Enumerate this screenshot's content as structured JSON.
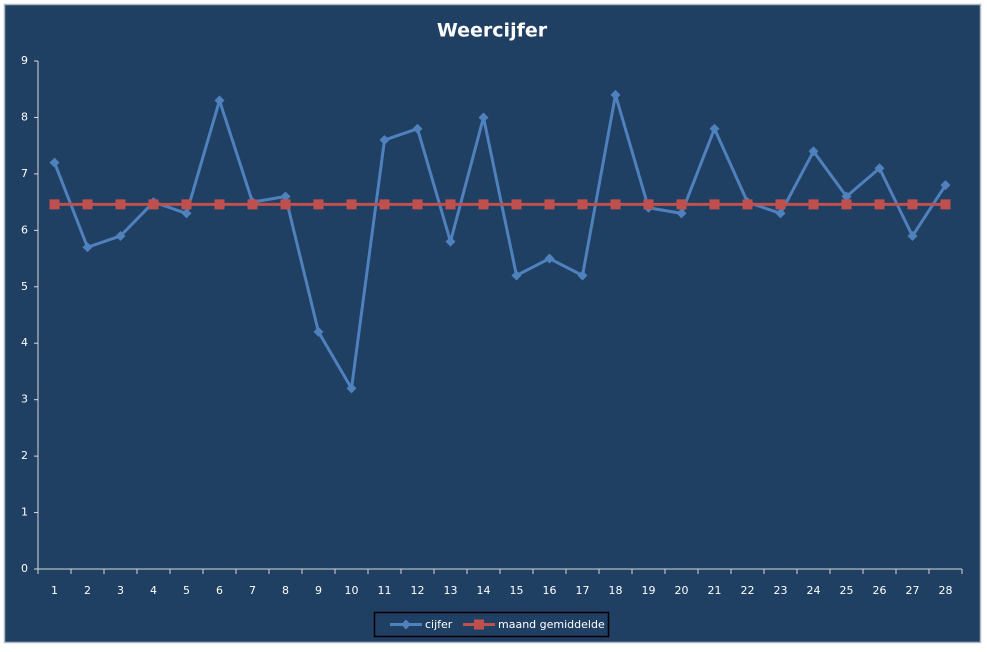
{
  "chart_data": {
    "type": "line",
    "title": "Weercijfer",
    "categories": [
      "1",
      "2",
      "3",
      "4",
      "5",
      "6",
      "7",
      "8",
      "9",
      "10",
      "11",
      "12",
      "13",
      "14",
      "15",
      "16",
      "17",
      "18",
      "19",
      "20",
      "21",
      "22",
      "23",
      "24",
      "25",
      "26",
      "27",
      "28"
    ],
    "series": [
      {
        "name": "cijfer",
        "color": "#4f81bd",
        "marker": "diamond",
        "values": [
          7.2,
          5.7,
          5.9,
          6.5,
          6.3,
          8.3,
          6.5,
          6.6,
          4.2,
          3.2,
          7.6,
          7.8,
          5.8,
          8.0,
          5.2,
          5.5,
          5.2,
          8.4,
          6.4,
          6.3,
          7.8,
          6.5,
          6.3,
          7.4,
          6.6,
          7.1,
          5.9,
          6.8
        ]
      },
      {
        "name": "maand gemiddelde",
        "color": "#c0504d",
        "marker": "square",
        "values": [
          6.46,
          6.46,
          6.46,
          6.46,
          6.46,
          6.46,
          6.46,
          6.46,
          6.46,
          6.46,
          6.46,
          6.46,
          6.46,
          6.46,
          6.46,
          6.46,
          6.46,
          6.46,
          6.46,
          6.46,
          6.46,
          6.46,
          6.46,
          6.46,
          6.46,
          6.46,
          6.46,
          6.46
        ]
      }
    ],
    "ylim": [
      0,
      9
    ],
    "yticks": [
      0,
      1,
      2,
      3,
      4,
      5,
      6,
      7,
      8,
      9
    ],
    "grid": false,
    "legend": "bottom"
  }
}
